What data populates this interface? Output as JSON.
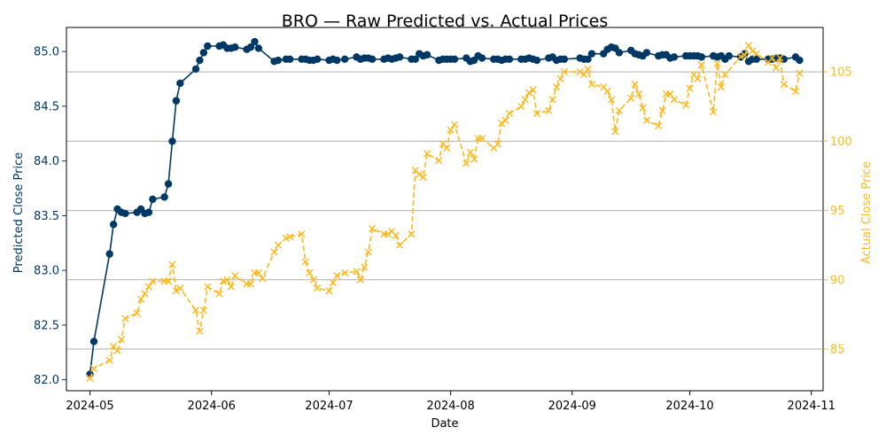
{
  "chart_data": {
    "type": "line",
    "title": "BRO — Raw Predicted vs. Actual Prices",
    "xlabel": "Date",
    "ylabel_left": "Predicted Close Price",
    "ylabel_right": "Actual Close Price",
    "xlim": [
      "2024-04-25",
      "2024-11-04"
    ],
    "ylim_left": [
      81.9,
      85.22
    ],
    "ylim_right": [
      82.0,
      108.2
    ],
    "x_ticks": [
      "2024-05-01",
      "2024-06-01",
      "2024-07-01",
      "2024-08-01",
      "2024-09-01",
      "2024-10-01",
      "2024-11-01"
    ],
    "x_tick_labels": [
      "2024-05",
      "2024-06",
      "2024-07",
      "2024-08",
      "2024-09",
      "2024-10",
      "2024-11"
    ],
    "y_ticks_left": [
      82.0,
      82.5,
      83.0,
      83.5,
      84.0,
      84.5,
      85.0
    ],
    "y_ticks_right": [
      85,
      90,
      95,
      100,
      105
    ],
    "grid": "horizontal-right-axis",
    "series": [
      {
        "axis": "left",
        "color": "#003865",
        "marker": "circle",
        "linestyle": "solid",
        "points": [
          [
            "2024-05-01",
            82.05
          ],
          [
            "2024-05-02",
            82.35
          ],
          [
            "2024-05-06",
            83.15
          ],
          [
            "2024-05-07",
            83.42
          ],
          [
            "2024-05-08",
            83.56
          ],
          [
            "2024-05-09",
            83.53
          ],
          [
            "2024-05-10",
            83.52
          ],
          [
            "2024-05-13",
            83.53
          ],
          [
            "2024-05-14",
            83.56
          ],
          [
            "2024-05-15",
            83.52
          ],
          [
            "2024-05-16",
            83.53
          ],
          [
            "2024-05-17",
            83.65
          ],
          [
            "2024-05-20",
            83.67
          ],
          [
            "2024-05-21",
            83.79
          ],
          [
            "2024-05-22",
            84.18
          ],
          [
            "2024-05-23",
            84.55
          ],
          [
            "2024-05-24",
            84.71
          ],
          [
            "2024-05-28",
            84.84
          ],
          [
            "2024-05-29",
            84.92
          ],
          [
            "2024-05-30",
            84.99
          ],
          [
            "2024-05-31",
            85.05
          ],
          [
            "2024-06-03",
            85.05
          ],
          [
            "2024-06-04",
            85.06
          ],
          [
            "2024-06-05",
            85.03
          ],
          [
            "2024-06-06",
            85.03
          ],
          [
            "2024-06-07",
            85.04
          ],
          [
            "2024-06-10",
            85.02
          ],
          [
            "2024-06-11",
            85.04
          ],
          [
            "2024-06-12",
            85.09
          ],
          [
            "2024-06-13",
            85.03
          ],
          [
            "2024-06-17",
            84.91
          ],
          [
            "2024-06-18",
            84.92
          ],
          [
            "2024-06-20",
            84.93
          ],
          [
            "2024-06-21",
            84.93
          ],
          [
            "2024-06-24",
            84.93
          ],
          [
            "2024-06-25",
            84.93
          ],
          [
            "2024-06-26",
            84.92
          ],
          [
            "2024-06-27",
            84.92
          ],
          [
            "2024-06-28",
            84.93
          ],
          [
            "2024-07-01",
            84.92
          ],
          [
            "2024-07-02",
            84.93
          ],
          [
            "2024-07-03",
            84.92
          ],
          [
            "2024-07-05",
            84.93
          ],
          [
            "2024-07-08",
            84.95
          ],
          [
            "2024-07-09",
            84.93
          ],
          [
            "2024-07-10",
            84.94
          ],
          [
            "2024-07-11",
            84.94
          ],
          [
            "2024-07-12",
            84.93
          ],
          [
            "2024-07-15",
            84.93
          ],
          [
            "2024-07-16",
            84.94
          ],
          [
            "2024-07-17",
            84.93
          ],
          [
            "2024-07-18",
            84.94
          ],
          [
            "2024-07-19",
            84.95
          ],
          [
            "2024-07-22",
            84.93
          ],
          [
            "2024-07-23",
            84.93
          ],
          [
            "2024-07-24",
            84.98
          ],
          [
            "2024-07-25",
            84.96
          ],
          [
            "2024-07-26",
            84.97
          ],
          [
            "2024-07-29",
            84.92
          ],
          [
            "2024-07-30",
            84.93
          ],
          [
            "2024-07-31",
            84.93
          ],
          [
            "2024-08-01",
            84.93
          ],
          [
            "2024-08-02",
            84.93
          ],
          [
            "2024-08-05",
            84.94
          ],
          [
            "2024-08-06",
            84.91
          ],
          [
            "2024-08-07",
            84.92
          ],
          [
            "2024-08-08",
            84.96
          ],
          [
            "2024-08-09",
            84.94
          ],
          [
            "2024-08-12",
            84.93
          ],
          [
            "2024-08-13",
            84.93
          ],
          [
            "2024-08-14",
            84.92
          ],
          [
            "2024-08-15",
            84.93
          ],
          [
            "2024-08-16",
            84.93
          ],
          [
            "2024-08-19",
            84.93
          ],
          [
            "2024-08-20",
            84.93
          ],
          [
            "2024-08-21",
            84.94
          ],
          [
            "2024-08-22",
            84.93
          ],
          [
            "2024-08-23",
            84.92
          ],
          [
            "2024-08-26",
            84.94
          ],
          [
            "2024-08-27",
            84.95
          ],
          [
            "2024-08-28",
            84.92
          ],
          [
            "2024-08-29",
            84.93
          ],
          [
            "2024-08-30",
            84.93
          ],
          [
            "2024-09-03",
            84.94
          ],
          [
            "2024-09-04",
            84.93
          ],
          [
            "2024-09-05",
            84.93
          ],
          [
            "2024-09-06",
            84.98
          ],
          [
            "2024-09-09",
            84.98
          ],
          [
            "2024-09-10",
            85.02
          ],
          [
            "2024-09-11",
            85.04
          ],
          [
            "2024-09-12",
            85.03
          ],
          [
            "2024-09-13",
            84.99
          ],
          [
            "2024-09-16",
            85.01
          ],
          [
            "2024-09-17",
            84.98
          ],
          [
            "2024-09-18",
            84.97
          ],
          [
            "2024-09-19",
            84.96
          ],
          [
            "2024-09-20",
            84.99
          ],
          [
            "2024-09-23",
            84.96
          ],
          [
            "2024-09-24",
            84.97
          ],
          [
            "2024-09-25",
            84.97
          ],
          [
            "2024-09-26",
            84.94
          ],
          [
            "2024-09-27",
            84.95
          ],
          [
            "2024-09-30",
            84.96
          ],
          [
            "2024-10-01",
            84.96
          ],
          [
            "2024-10-02",
            84.96
          ],
          [
            "2024-10-03",
            84.96
          ],
          [
            "2024-10-04",
            84.95
          ],
          [
            "2024-10-07",
            84.96
          ],
          [
            "2024-10-08",
            84.95
          ],
          [
            "2024-10-09",
            84.96
          ],
          [
            "2024-10-10",
            84.93
          ],
          [
            "2024-10-11",
            84.96
          ],
          [
            "2024-10-14",
            84.95
          ],
          [
            "2024-10-15",
            84.98
          ],
          [
            "2024-10-16",
            84.91
          ],
          [
            "2024-10-17",
            84.93
          ],
          [
            "2024-10-18",
            84.93
          ],
          [
            "2024-10-21",
            84.93
          ],
          [
            "2024-10-22",
            84.93
          ],
          [
            "2024-10-23",
            84.94
          ],
          [
            "2024-10-24",
            84.94
          ],
          [
            "2024-10-25",
            84.93
          ],
          [
            "2024-10-28",
            84.95
          ],
          [
            "2024-10-29",
            84.92
          ]
        ]
      },
      {
        "axis": "right",
        "color": "#FFB81C",
        "marker": "x",
        "linestyle": "dashed",
        "points": [
          [
            "2024-05-01",
            82.9
          ],
          [
            "2024-05-02",
            83.6
          ],
          [
            "2024-05-06",
            84.2
          ],
          [
            "2024-05-07",
            85.2
          ],
          [
            "2024-05-08",
            84.9
          ],
          [
            "2024-05-09",
            85.7
          ],
          [
            "2024-05-10",
            87.2
          ],
          [
            "2024-05-13",
            87.6
          ],
          [
            "2024-05-14",
            88.6
          ],
          [
            "2024-05-15",
            89.0
          ],
          [
            "2024-05-16",
            89.5
          ],
          [
            "2024-05-17",
            89.9
          ],
          [
            "2024-05-20",
            89.9
          ],
          [
            "2024-05-21",
            89.9
          ],
          [
            "2024-05-22",
            91.1
          ],
          [
            "2024-05-23",
            89.2
          ],
          [
            "2024-05-24",
            89.4
          ],
          [
            "2024-05-28",
            87.8
          ],
          [
            "2024-05-29",
            86.3
          ],
          [
            "2024-05-30",
            87.8
          ],
          [
            "2024-05-31",
            89.5
          ],
          [
            "2024-06-03",
            89.0
          ],
          [
            "2024-06-04",
            89.9
          ],
          [
            "2024-06-05",
            90.0
          ],
          [
            "2024-06-06",
            89.5
          ],
          [
            "2024-06-07",
            90.3
          ],
          [
            "2024-06-10",
            89.7
          ],
          [
            "2024-06-11",
            89.7
          ],
          [
            "2024-06-12",
            90.5
          ],
          [
            "2024-06-13",
            90.5
          ],
          [
            "2024-06-14",
            90.1
          ],
          [
            "2024-06-17",
            92.0
          ],
          [
            "2024-06-18",
            92.5
          ],
          [
            "2024-06-20",
            93.0
          ],
          [
            "2024-06-21",
            93.1
          ],
          [
            "2024-06-24",
            93.3
          ],
          [
            "2024-06-25",
            91.3
          ],
          [
            "2024-06-26",
            90.5
          ],
          [
            "2024-06-27",
            90.0
          ],
          [
            "2024-06-28",
            89.4
          ],
          [
            "2024-07-01",
            89.2
          ],
          [
            "2024-07-02",
            89.8
          ],
          [
            "2024-07-03",
            90.3
          ],
          [
            "2024-07-05",
            90.5
          ],
          [
            "2024-07-08",
            90.6
          ],
          [
            "2024-07-09",
            90.0
          ],
          [
            "2024-07-10",
            90.9
          ],
          [
            "2024-07-11",
            92.0
          ],
          [
            "2024-07-12",
            93.7
          ],
          [
            "2024-07-15",
            93.3
          ],
          [
            "2024-07-16",
            93.3
          ],
          [
            "2024-07-17",
            93.5
          ],
          [
            "2024-07-18",
            93.2
          ],
          [
            "2024-07-19",
            92.5
          ],
          [
            "2024-07-22",
            93.3
          ],
          [
            "2024-07-23",
            97.9
          ],
          [
            "2024-07-24",
            97.6
          ],
          [
            "2024-07-25",
            97.4
          ],
          [
            "2024-07-26",
            99.1
          ],
          [
            "2024-07-29",
            98.6
          ],
          [
            "2024-07-30",
            99.8
          ],
          [
            "2024-07-31",
            99.5
          ],
          [
            "2024-08-01",
            100.8
          ],
          [
            "2024-08-02",
            101.2
          ],
          [
            "2024-08-05",
            98.4
          ],
          [
            "2024-08-06",
            99.2
          ],
          [
            "2024-08-07",
            98.7
          ],
          [
            "2024-08-08",
            100.2
          ],
          [
            "2024-08-09",
            100.2
          ],
          [
            "2024-08-12",
            99.5
          ],
          [
            "2024-08-13",
            99.8
          ],
          [
            "2024-08-14",
            101.3
          ],
          [
            "2024-08-15",
            101.5
          ],
          [
            "2024-08-16",
            102.0
          ],
          [
            "2024-08-19",
            102.5
          ],
          [
            "2024-08-20",
            103.0
          ],
          [
            "2024-08-21",
            103.5
          ],
          [
            "2024-08-22",
            103.7
          ],
          [
            "2024-08-23",
            102.0
          ],
          [
            "2024-08-26",
            102.2
          ],
          [
            "2024-08-27",
            103.0
          ],
          [
            "2024-08-28",
            103.9
          ],
          [
            "2024-08-29",
            104.5
          ],
          [
            "2024-08-30",
            105.0
          ],
          [
            "2024-09-03",
            105.0
          ],
          [
            "2024-09-04",
            104.8
          ],
          [
            "2024-09-05",
            105.2
          ],
          [
            "2024-09-06",
            104.1
          ],
          [
            "2024-09-09",
            103.9
          ],
          [
            "2024-09-10",
            103.6
          ],
          [
            "2024-09-11",
            103.0
          ],
          [
            "2024-09-12",
            100.7
          ],
          [
            "2024-09-13",
            102.2
          ],
          [
            "2024-09-16",
            103.1
          ],
          [
            "2024-09-17",
            104.1
          ],
          [
            "2024-09-18",
            103.4
          ],
          [
            "2024-09-19",
            102.4
          ],
          [
            "2024-09-20",
            101.5
          ],
          [
            "2024-09-23",
            101.1
          ],
          [
            "2024-09-24",
            102.2
          ],
          [
            "2024-09-25",
            103.4
          ],
          [
            "2024-09-26",
            103.4
          ],
          [
            "2024-09-27",
            103.0
          ],
          [
            "2024-09-30",
            102.6
          ],
          [
            "2024-10-01",
            103.8
          ],
          [
            "2024-10-02",
            104.8
          ],
          [
            "2024-10-03",
            104.5
          ],
          [
            "2024-10-04",
            105.5
          ],
          [
            "2024-10-07",
            102.1
          ],
          [
            "2024-10-08",
            105.6
          ],
          [
            "2024-10-09",
            103.9
          ],
          [
            "2024-10-10",
            104.8
          ],
          [
            "2024-10-14",
            106.1
          ],
          [
            "2024-10-15",
            106.2
          ],
          [
            "2024-10-16",
            106.9
          ],
          [
            "2024-10-17",
            106.5
          ],
          [
            "2024-10-18",
            106.3
          ],
          [
            "2024-10-21",
            105.7
          ],
          [
            "2024-10-22",
            106.0
          ],
          [
            "2024-10-23",
            105.3
          ],
          [
            "2024-10-24",
            106.0
          ],
          [
            "2024-10-25",
            104.1
          ],
          [
            "2024-10-28",
            103.6
          ],
          [
            "2024-10-29",
            104.9
          ]
        ]
      }
    ]
  }
}
